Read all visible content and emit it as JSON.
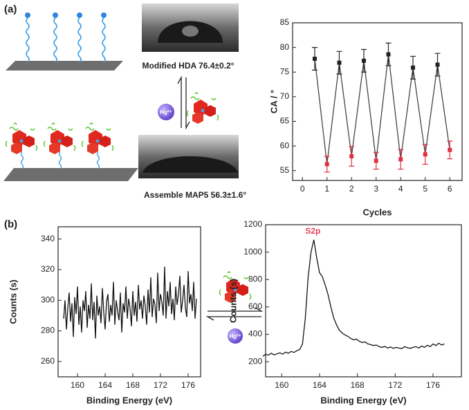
{
  "figure": {
    "panel_labels": [
      "(a)",
      "(b)"
    ],
    "contact_angle_top": "Modified HDA  76.4±0.2°",
    "contact_angle_bottom": "Assemble MAP5  56.3±1.6°",
    "ion_label_a": "Hg²⁺",
    "ion_label_b": "Hg²⁺"
  },
  "chart_data": [
    {
      "type": "line",
      "xlabel": "Cycles",
      "ylabel": "CA / °",
      "x": [
        0.5,
        1,
        1.5,
        2,
        2.5,
        3,
        3.5,
        4,
        4.5,
        5,
        5.5,
        6
      ],
      "values": [
        77.7,
        56.3,
        76.9,
        57.9,
        77.3,
        57.0,
        78.6,
        57.3,
        75.9,
        58.3,
        76.5,
        59.2
      ],
      "errors": [
        2.3,
        1.6,
        2.3,
        2.0,
        2.3,
        1.7,
        2.3,
        2.0,
        2.3,
        2.0,
        2.3,
        1.8
      ],
      "marker_colors": [
        "#222222",
        "#e03040",
        "#222222",
        "#e03040",
        "#222222",
        "#e03040",
        "#222222",
        "#e03040",
        "#222222",
        "#e03040",
        "#222222",
        "#e03040"
      ],
      "color": "#444444",
      "xlim": [
        -0.4,
        6.5
      ],
      "xticks": [
        0,
        1,
        2,
        3,
        4,
        5,
        6
      ],
      "ylim": [
        53,
        85
      ],
      "yticks": [
        55,
        60,
        65,
        70,
        75,
        80,
        85
      ]
    },
    {
      "type": "line",
      "xlabel": "Binding Energy (eV)",
      "ylabel": "Counts (s)",
      "color": "#111111",
      "x": [
        158.0,
        158.2,
        158.4,
        158.6,
        158.8,
        159.0,
        159.2,
        159.4,
        159.6,
        159.8,
        160.0,
        160.2,
        160.4,
        160.6,
        160.8,
        161.0,
        161.2,
        161.4,
        161.6,
        161.8,
        162.0,
        162.2,
        162.4,
        162.6,
        162.8,
        163.0,
        163.2,
        163.4,
        163.6,
        163.8,
        164.0,
        164.2,
        164.4,
        164.6,
        164.8,
        165.0,
        165.2,
        165.4,
        165.6,
        165.8,
        166.0,
        166.2,
        166.4,
        166.6,
        166.8,
        167.0,
        167.2,
        167.4,
        167.6,
        167.8,
        168.0,
        168.2,
        168.4,
        168.6,
        168.8,
        169.0,
        169.2,
        169.4,
        169.6,
        169.8,
        170.0,
        170.2,
        170.4,
        170.6,
        170.8,
        171.0,
        171.2,
        171.4,
        171.6,
        171.8,
        172.0,
        172.2,
        172.4,
        172.6,
        172.8,
        173.0,
        173.2,
        173.4,
        173.6,
        173.8,
        174.0,
        174.2,
        174.4,
        174.6,
        174.8,
        175.0,
        175.2,
        175.4,
        175.6,
        175.8,
        176.0,
        176.2,
        176.4,
        176.6,
        176.8,
        177.0,
        177.2
      ],
      "values": [
        288,
        300,
        281,
        295,
        305,
        286,
        298,
        276,
        302,
        291,
        309,
        284,
        296,
        279,
        300,
        293,
        306,
        282,
        297,
        288,
        311,
        287,
        299,
        275,
        303,
        290,
        296,
        285,
        308,
        292,
        281,
        299,
        304,
        286,
        297,
        290,
        312,
        284,
        300,
        293,
        287,
        305,
        279,
        298,
        292,
        309,
        288,
        301,
        295,
        283,
        306,
        290,
        299,
        286,
        310,
        294,
        300,
        288,
        303,
        296,
        284,
        307,
        292,
        315,
        289,
        301,
        297,
        285,
        318,
        293,
        304,
        299,
        290,
        322,
        288,
        306,
        296,
        312,
        291,
        301,
        287,
        309,
        297,
        304,
        316,
        292,
        300,
        310,
        295,
        289,
        319,
        298,
        304,
        293,
        312,
        288,
        301
      ],
      "xlim": [
        157.2,
        177.8
      ],
      "xticks": [
        160,
        164,
        168,
        172,
        176
      ],
      "ylim": [
        250,
        348
      ],
      "yticks": [
        260,
        280,
        300,
        320,
        340
      ]
    },
    {
      "type": "line",
      "xlabel": "Binding Energy (eV)",
      "ylabel": "Counts (s)",
      "color": "#111111",
      "annotation": {
        "text": "S2p",
        "x": 163.3,
        "y": 1150,
        "color": "#e8405a"
      },
      "x": [
        158.0,
        158.3,
        158.6,
        158.9,
        159.2,
        159.5,
        159.8,
        160.1,
        160.4,
        160.7,
        161.0,
        161.3,
        161.6,
        161.9,
        162.2,
        162.5,
        162.8,
        163.1,
        163.4,
        163.7,
        164.0,
        164.3,
        164.6,
        164.9,
        165.2,
        165.5,
        165.8,
        166.1,
        166.4,
        166.7,
        167.0,
        167.3,
        167.6,
        167.9,
        168.2,
        168.5,
        168.8,
        169.1,
        169.4,
        169.7,
        170.0,
        170.3,
        170.6,
        170.9,
        171.2,
        171.5,
        171.8,
        172.1,
        172.4,
        172.7,
        173.0,
        173.3,
        173.6,
        173.9,
        174.2,
        174.5,
        174.8,
        175.1,
        175.4,
        175.7,
        176.0,
        176.3,
        176.6,
        176.9,
        177.2
      ],
      "values": [
        240,
        255,
        248,
        262,
        250,
        258,
        265,
        255,
        270,
        262,
        275,
        268,
        280,
        290,
        330,
        520,
        820,
        1000,
        1090,
        960,
        850,
        820,
        760,
        690,
        600,
        520,
        470,
        430,
        410,
        395,
        385,
        370,
        360,
        365,
        350,
        340,
        345,
        330,
        325,
        318,
        322,
        310,
        305,
        312,
        300,
        308,
        298,
        305,
        300,
        296,
        310,
        302,
        298,
        305,
        310,
        300,
        315,
        305,
        320,
        310,
        330,
        318,
        335,
        322,
        330
      ],
      "xlim": [
        158.3,
        179
      ],
      "xticks": [
        160,
        164,
        168,
        172,
        176
      ],
      "ylim": [
        90,
        1200
      ],
      "yticks": [
        200,
        400,
        600,
        800,
        1000,
        1200
      ]
    }
  ]
}
